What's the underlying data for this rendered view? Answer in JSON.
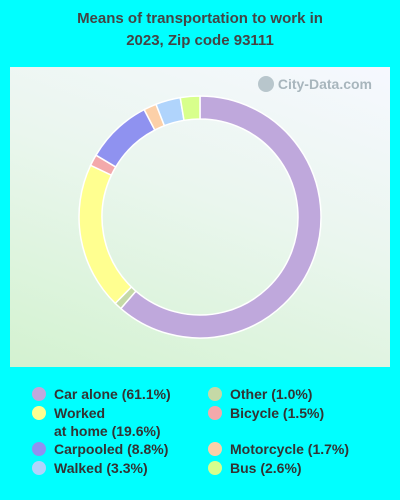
{
  "chart_data": {
    "type": "pie",
    "style": "donut",
    "title": "Means of transportation to work in\n2023, Zip code 93111",
    "legend_position": "bottom",
    "slices": [
      {
        "label": "Car alone",
        "legend_text": "Car alone (61.1%)",
        "value": 61.1,
        "color": "#bfa8dc"
      },
      {
        "label": "Other",
        "legend_text": "Other (1.0%)",
        "value": 1.0,
        "color": "#c5d9a6"
      },
      {
        "label": "Worked at home",
        "legend_text": "Worked\nat home (19.6%)",
        "value": 19.6,
        "color": "#ffff90"
      },
      {
        "label": "Bicycle",
        "legend_text": "Bicycle (1.5%)",
        "value": 1.5,
        "color": "#f3a9ab"
      },
      {
        "label": "Carpooled",
        "legend_text": "Carpooled (8.8%)",
        "value": 8.8,
        "color": "#8f92f0"
      },
      {
        "label": "Motorcycle",
        "legend_text": "Motorcycle (1.7%)",
        "value": 1.7,
        "color": "#fcd0a8"
      },
      {
        "label": "Walked",
        "legend_text": "Walked (3.3%)",
        "value": 3.3,
        "color": "#b0d4fc"
      },
      {
        "label": "Bus",
        "legend_text": "Bus (2.6%)",
        "value": 2.6,
        "color": "#d8ff8c"
      }
    ],
    "legend_order": [
      "Car alone",
      "Worked at home",
      "Carpooled",
      "Walked",
      "Other",
      "Bicycle",
      "Motorcycle",
      "Bus"
    ]
  },
  "watermark": {
    "text": "City-Data.com",
    "icon": "city-data-logo-icon"
  }
}
